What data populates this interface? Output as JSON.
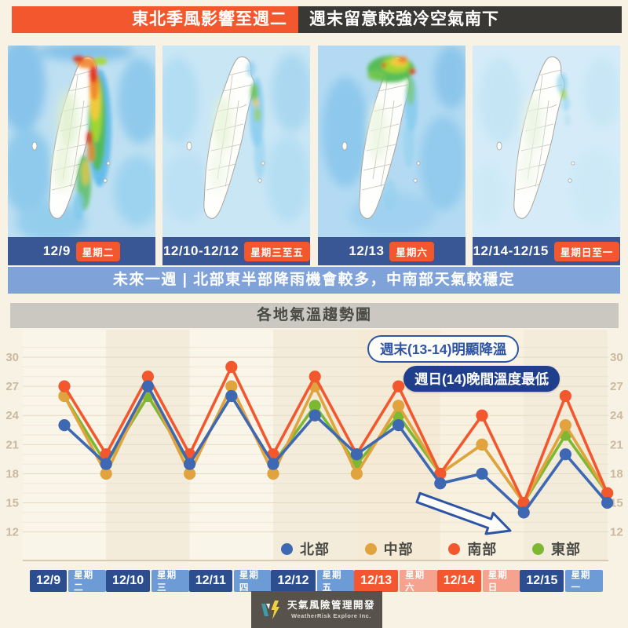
{
  "header": {
    "left": "東北季風影響至週二",
    "right": "週末留意較強冷空氣南下"
  },
  "map_panels": [
    {
      "date": "12/9",
      "weekday": "星期二"
    },
    {
      "date": "12/10-12/12",
      "weekday": "星期三至五"
    },
    {
      "date": "12/13",
      "weekday": "星期六"
    },
    {
      "date": "12/14-12/15",
      "weekday": "星期日至一"
    }
  ],
  "subtitle": "未來一週 | 北部東半部降雨機會較多，中南部天氣較穩定",
  "chart_title": "各地氣溫趨勢圖",
  "annotations": {
    "weekend_cooldown": "週末(13-14)明顯降溫",
    "sunday_lowest": "週日(14)晚間溫度最低"
  },
  "chart_data": {
    "type": "line",
    "title": "各地氣溫趨勢圖",
    "x_days": [
      "12/9",
      "12/10",
      "12/11",
      "12/12",
      "12/13",
      "12/14",
      "12/15"
    ],
    "points_per_day": 2,
    "note": "two points per day: daytime high then nighttime low (°C)",
    "yticks": [
      12,
      15,
      18,
      21,
      24,
      27,
      30
    ],
    "ylim": [
      11,
      32
    ],
    "grid": true,
    "legend_position": "bottom-right",
    "series": [
      {
        "name": "北部",
        "color": "#3E68B2",
        "values": [
          23,
          19,
          27,
          19,
          26,
          19,
          24,
          20,
          23,
          17,
          18,
          14,
          20,
          15
        ]
      },
      {
        "name": "中部",
        "color": "#E0A33E",
        "values": [
          26,
          18,
          27,
          18,
          27,
          18,
          27,
          18,
          25,
          18,
          21,
          15,
          23,
          16
        ]
      },
      {
        "name": "南部",
        "color": "#F2572D",
        "values": [
          27,
          20,
          28,
          20,
          29,
          20,
          28,
          20,
          27,
          18,
          24,
          15,
          26,
          16
        ]
      },
      {
        "name": "東部",
        "color": "#7CB832",
        "values": [
          26,
          19,
          26,
          19,
          26,
          19,
          25,
          19,
          24,
          18,
          21,
          15,
          22,
          16
        ]
      }
    ],
    "draw_order": [
      3,
      1,
      2,
      0
    ]
  },
  "day_chips": [
    {
      "date": "12/9",
      "weekday": "星期二",
      "weekend": false
    },
    {
      "date": "12/10",
      "weekday": "星期三",
      "weekend": false
    },
    {
      "date": "12/11",
      "weekday": "星期四",
      "weekend": false
    },
    {
      "date": "12/12",
      "weekday": "星期五",
      "weekend": false
    },
    {
      "date": "12/13",
      "weekday": "星期六",
      "weekend": true
    },
    {
      "date": "12/14",
      "weekday": "星期日",
      "weekend": true
    },
    {
      "date": "12/15",
      "weekday": "星期一",
      "weekend": false
    }
  ],
  "footer": {
    "brand": "天氣風險管理開發",
    "brand_en": "WeatherRisk Explore Inc."
  },
  "colors": {
    "accent_orange": "#F2572D",
    "header_dark": "#3A3834",
    "map_bar_blue": "#3A5795",
    "subtitle_blue": "#7FA3D9",
    "annotation_navy": "#1F3E8C",
    "chip_navy": "#2C4E8E",
    "chip_light_blue": "#6D9BD5",
    "chip_weekend": "#F4572F",
    "chip_weekend_light": "#F5A28F",
    "band_light": "#FAF5E9",
    "band_beige": "#F3ECDB",
    "band_weekend": "#F5EAD5",
    "band_weekend2": "#F9F1DF"
  }
}
